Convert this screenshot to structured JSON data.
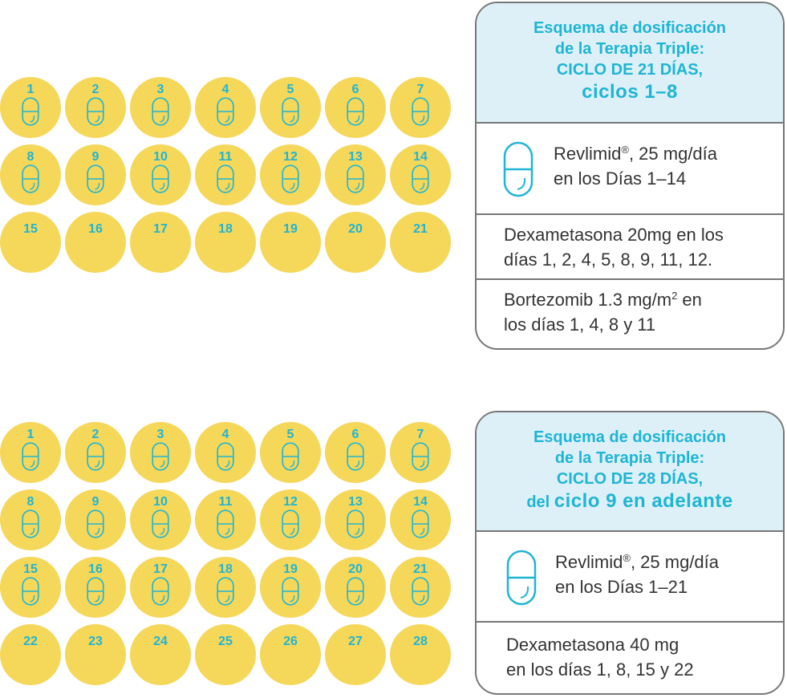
{
  "section1": {
    "days_with_pill": [
      "1",
      "2",
      "3",
      "4",
      "5",
      "6",
      "7",
      "8",
      "9",
      "10",
      "11",
      "12",
      "13",
      "14"
    ],
    "days_no_pill": [
      "15",
      "16",
      "17",
      "18",
      "19",
      "20",
      "21"
    ],
    "panel": {
      "title_line1": "Esquema de dosificación",
      "title_line2": "de la Terapia Triple:",
      "title_line3": "CICLO DE 21 DÍAS,",
      "title_line4": "ciclos 1–8",
      "revlimid_name": "Revlimid",
      "revlimid_mark": "®",
      "revlimid_dose": ", 25 mg/día",
      "revlimid_days": "en los Días 1–14",
      "dexa_line1": "Dexametasona 20mg en los",
      "dexa_line2": "días 1, 2, 4, 5, 8, 9, 11, 12.",
      "bortez_pre": "Bortezomib 1.3  mg/m",
      "bortez_sup": "2",
      "bortez_post": " en",
      "bortez_line2": "los días 1, 4, 8 y 11"
    }
  },
  "section2": {
    "days_with_pill": [
      "1",
      "2",
      "3",
      "4",
      "5",
      "6",
      "7",
      "8",
      "9",
      "10",
      "11",
      "12",
      "13",
      "14",
      "15",
      "16",
      "17",
      "18",
      "19",
      "20",
      "21"
    ],
    "days_no_pill": [
      "22",
      "23",
      "24",
      "25",
      "26",
      "27",
      "28"
    ],
    "panel": {
      "title_line1": "Esquema de dosificación",
      "title_line2": "de la Terapia Triple:",
      "title_line3": "CICLO DE 28 DÍAS,",
      "title_line4_a": "del ",
      "title_line4_b": "ciclo 9 en adelante",
      "revlimid_name": "Revlimid",
      "revlimid_mark": "®",
      "revlimid_dose": ", 25 mg/día",
      "revlimid_days": "en los Días 1–21",
      "dexa_line1": "Dexametasona 40 mg",
      "dexa_line2": "en los días 1, 8, 15 y 22"
    }
  },
  "colors": {
    "day_circle": "#f5d75a",
    "accent": "#1eb5d4",
    "header_bg": "#def0f7",
    "border": "#777777",
    "text": "#333333"
  },
  "icons": {
    "pill": "capsule-icon"
  }
}
